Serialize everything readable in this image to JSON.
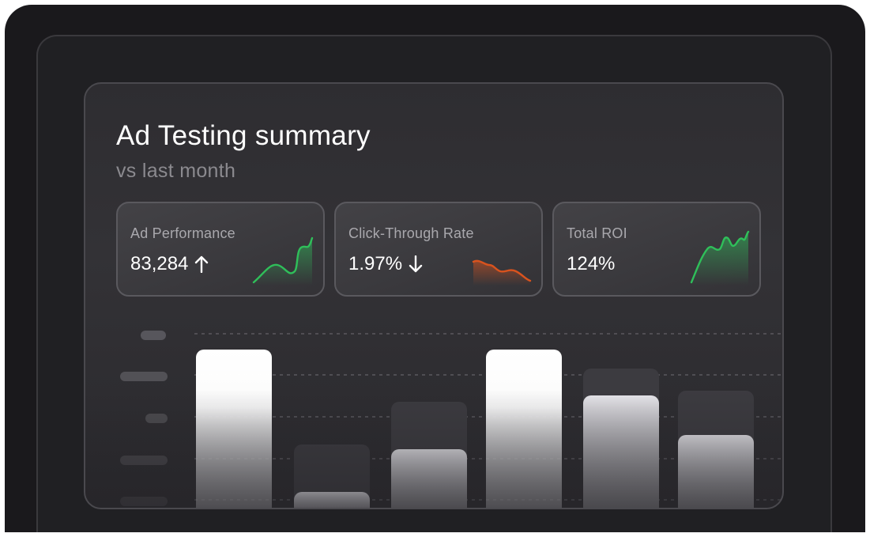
{
  "summary": {
    "title": "Ad Testing summary",
    "subtitle": "vs last month"
  },
  "cards": [
    {
      "label": "Ad Performance",
      "value": "83,284",
      "trend": "up",
      "icon": "arrow-up-icon",
      "spark_color": "#2fbf5a"
    },
    {
      "label": "Click-Through Rate",
      "value": "1.97%",
      "trend": "down",
      "icon": "arrow-down-icon",
      "spark_color": "#d9531e"
    },
    {
      "label": "Total ROI",
      "value": "124%",
      "trend": "none",
      "icon": "",
      "spark_color": "#2fbf5a"
    }
  ],
  "chart_data": {
    "type": "bar",
    "categories": [
      "",
      "",
      "",
      "",
      "",
      ""
    ],
    "series": [
      {
        "values": [
          100,
          40,
          67,
          100,
          88,
          74
        ]
      },
      {
        "values": [
          100,
          10,
          37,
          100,
          71,
          46
        ]
      }
    ],
    "ylim": [
      0,
      100
    ],
    "grid": true,
    "colors": {
      "bar": "#ffffff",
      "ghost": "#3c3b40"
    }
  }
}
